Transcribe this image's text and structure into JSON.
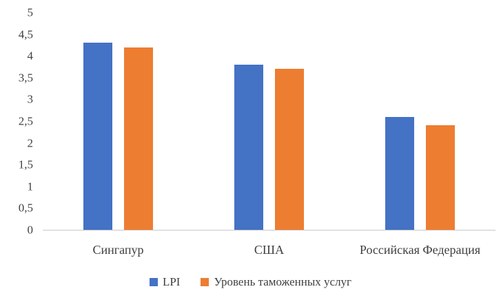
{
  "chart": {
    "background": "#ffffff",
    "text_color": "#3f3f3f",
    "axis_line_color": "#c8c8c8"
  },
  "chart_data": {
    "type": "bar",
    "title": "",
    "categories": [
      "Сингапур",
      "США",
      "Российская Федерация"
    ],
    "series": [
      {
        "name": "LPI",
        "color": "#4472C4",
        "values": [
          4.3,
          3.8,
          2.6
        ]
      },
      {
        "name": "Уровень таможенных услуг",
        "color": "#ED7D31",
        "values": [
          4.2,
          3.7,
          2.4
        ]
      }
    ],
    "ylim": [
      0,
      5
    ],
    "ytick_step": 0.5,
    "ytick_labels": [
      "0",
      "0,5",
      "1",
      "1,5",
      "2",
      "2,5",
      "3",
      "3,5",
      "4",
      "4,5",
      "5"
    ],
    "grid": false,
    "legend_position": "bottom"
  }
}
